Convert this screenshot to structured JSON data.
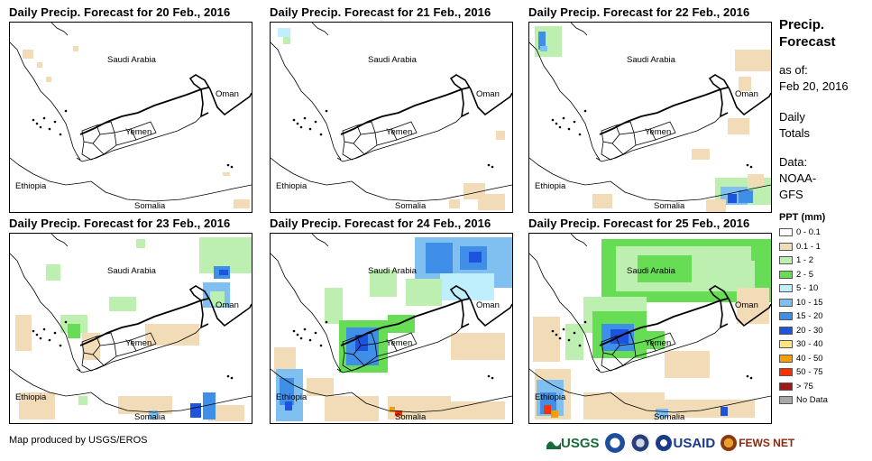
{
  "colors": {
    "ppt": [
      "#ffffff",
      "#f2dcb8",
      "#bdf0b0",
      "#66dd55",
      "#bfeefd",
      "#80c0f0",
      "#3f8fe8",
      "#1c54e0",
      "#ffe680",
      "#f5a000",
      "#ff3000",
      "#a01818",
      "#a8a8a8"
    ]
  },
  "panels": [
    {
      "title": "Daily Precip. Forecast for 20 Feb., 2016",
      "labels": {
        "saudi": "Saudi Arabia",
        "oman": "Oman",
        "yemen": "Yemen",
        "ethiopia": "Ethiopia",
        "somalia": "Somalia"
      }
    },
    {
      "title": "Daily Precip. Forecast for 21 Feb., 2016",
      "labels": {
        "saudi": "Saudi Arabia",
        "oman": "Oman",
        "yemen": "Yemen",
        "ethiopia": "Ethiopia",
        "somalia": "Somalia"
      }
    },
    {
      "title": "Daily Precip. Forecast for 22 Feb., 2016",
      "labels": {
        "saudi": "Saudi Arabia",
        "oman": "Oman",
        "yemen": "Yemen",
        "ethiopia": "Ethiopia",
        "somalia": "Somalia"
      }
    },
    {
      "title": "Daily Precip. Forecast for 23 Feb., 2016",
      "labels": {
        "saudi": "Saudi Arabia",
        "oman": "Oman",
        "yemen": "Yemen",
        "ethiopia": "Ethiopia",
        "somalia": "Somalia"
      }
    },
    {
      "title": "Daily Precip. Forecast for 24 Feb., 2016",
      "labels": {
        "saudi": "Saudi Arabia",
        "oman": "Oman",
        "yemen": "Yemen",
        "ethiopia": "Ethiopia",
        "somalia": "Somalia"
      }
    },
    {
      "title": "Daily Precip. Forecast for 25 Feb., 2016",
      "labels": {
        "saudi": "Saudi Arabia",
        "oman": "Oman",
        "yemen": "Yemen",
        "ethiopia": "Ethiopia",
        "somalia": "Somalia"
      }
    }
  ],
  "sidebar": {
    "title_line1": "Precip.",
    "title_line2": "Forecast",
    "asof_label": "as of:",
    "asof_date": "Feb 20, 2016",
    "daily_line1": "Daily",
    "daily_line2": "Totals",
    "data_label": "Data:",
    "data_line1": "NOAA-",
    "data_line2": "GFS"
  },
  "legend": {
    "title": "PPT (mm)",
    "items": [
      {
        "label": "0 - 0.1",
        "color": "#ffffff"
      },
      {
        "label": "0.1 - 1",
        "color": "#f2dcb8"
      },
      {
        "label": "1 - 2",
        "color": "#bdf0b0"
      },
      {
        "label": "2 - 5",
        "color": "#66dd55"
      },
      {
        "label": "5 - 10",
        "color": "#bfeefd"
      },
      {
        "label": "10 - 15",
        "color": "#80c0f0"
      },
      {
        "label": "15 - 20",
        "color": "#3f8fe8"
      },
      {
        "label": "20 - 30",
        "color": "#1c54e0"
      },
      {
        "label": "30 - 40",
        "color": "#ffe680"
      },
      {
        "label": "40 - 50",
        "color": "#f5a000"
      },
      {
        "label": "50 - 75",
        "color": "#ff3000"
      },
      {
        "label": "> 75",
        "color": "#a01818"
      },
      {
        "label": "No Data",
        "color": "#a8a8a8"
      }
    ]
  },
  "footer": {
    "credit": "Map produced by USGS/EROS",
    "logo_usgs": "USGS",
    "logo_usaid": "USAID",
    "logo_fews": "FEWS NET"
  }
}
